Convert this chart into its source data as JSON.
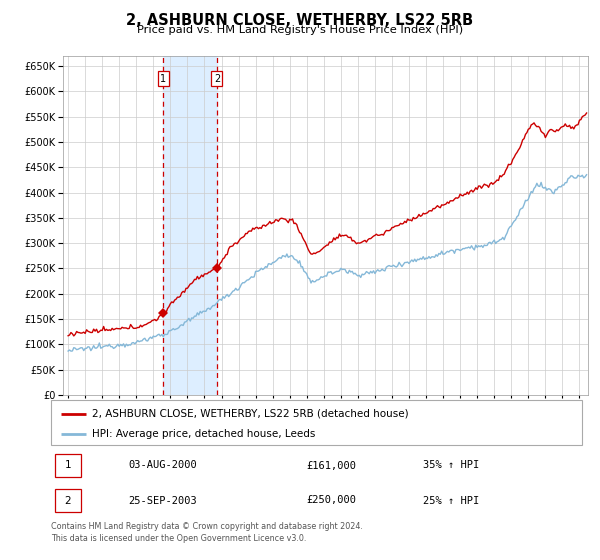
{
  "title": "2, ASHBURN CLOSE, WETHERBY, LS22 5RB",
  "subtitle": "Price paid vs. HM Land Registry's House Price Index (HPI)",
  "legend_line1": "2, ASHBURN CLOSE, WETHERBY, LS22 5RB (detached house)",
  "legend_line2": "HPI: Average price, detached house, Leeds",
  "sale1_label": "1",
  "sale1_date": "03-AUG-2000",
  "sale1_price": "£161,000",
  "sale1_hpi": "35% ↑ HPI",
  "sale1_year": 2000.58,
  "sale1_value": 161000,
  "sale2_label": "2",
  "sale2_date": "25-SEP-2003",
  "sale2_price": "£250,000",
  "sale2_hpi": "25% ↑ HPI",
  "sale2_year": 2003.73,
  "sale2_value": 250000,
  "copyright_text": "Contains HM Land Registry data © Crown copyright and database right 2024.\nThis data is licensed under the Open Government Licence v3.0.",
  "red_color": "#cc0000",
  "blue_color": "#85b8d8",
  "shade_color": "#ddeeff",
  "grid_color": "#cccccc",
  "ylim": [
    0,
    670000
  ],
  "xlim_start": 1994.7,
  "xlim_end": 2025.5
}
